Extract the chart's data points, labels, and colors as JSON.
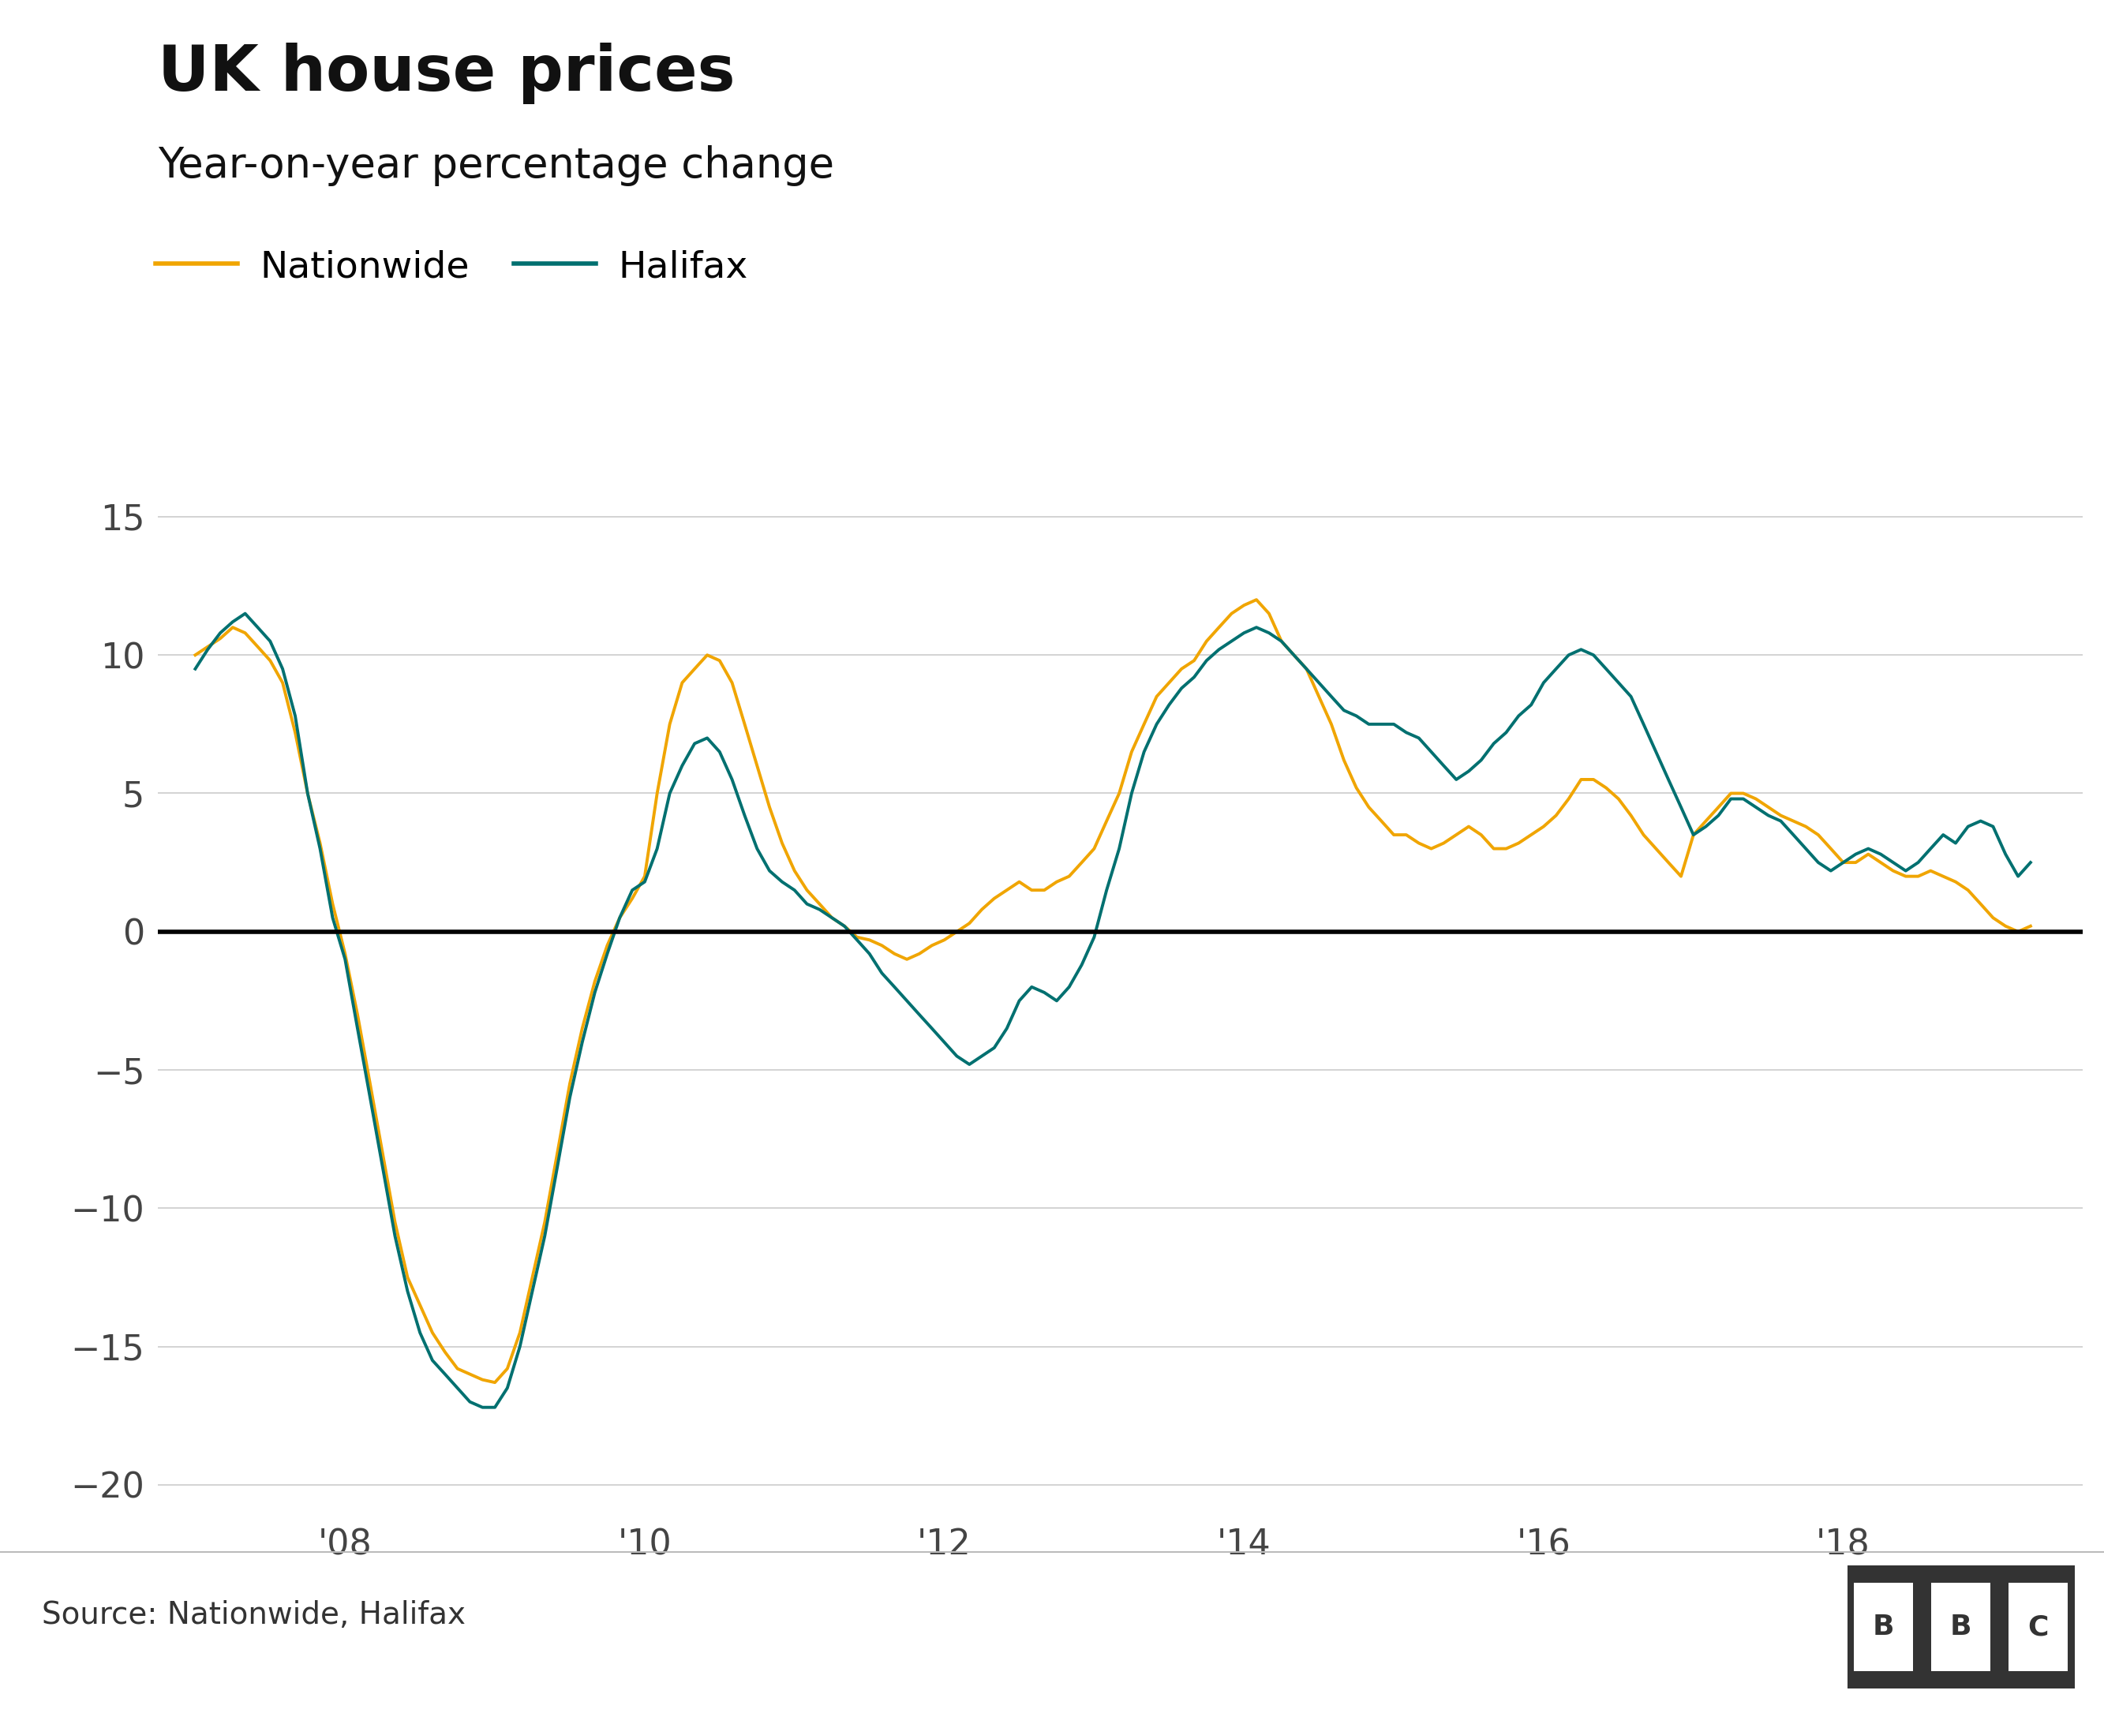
{
  "title": "UK house prices",
  "subtitle": "Year-on-year percentage change",
  "nationwide_color": "#f0a500",
  "halifax_color": "#007070",
  "zero_line_color": "#000000",
  "background_color": "#ffffff",
  "grid_color": "#cccccc",
  "source_text": "Source: Nationwide, Halifax",
  "legend_nationwide": "Nationwide",
  "legend_halifax": "Halifax",
  "title_fontsize": 58,
  "subtitle_fontsize": 38,
  "legend_fontsize": 34,
  "tick_fontsize": 32,
  "source_fontsize": 28,
  "ylim": [
    -21,
    17
  ],
  "yticks": [
    -20,
    -15,
    -10,
    -5,
    0,
    5,
    10,
    15
  ],
  "x_tick_labels": [
    "'08",
    "'10",
    "'12",
    "'14",
    "'16",
    "'18"
  ],
  "x_tick_positions": [
    2008,
    2010,
    2012,
    2014,
    2016,
    2018
  ],
  "xlim_left": 2006.75,
  "xlim_right": 2019.6,
  "nationwide_x": [
    2007.0,
    2007.083,
    2007.167,
    2007.25,
    2007.333,
    2007.417,
    2007.5,
    2007.583,
    2007.667,
    2007.75,
    2007.833,
    2007.917,
    2008.0,
    2008.083,
    2008.167,
    2008.25,
    2008.333,
    2008.417,
    2008.5,
    2008.583,
    2008.667,
    2008.75,
    2008.833,
    2008.917,
    2009.0,
    2009.083,
    2009.167,
    2009.25,
    2009.333,
    2009.417,
    2009.5,
    2009.583,
    2009.667,
    2009.75,
    2009.833,
    2009.917,
    2010.0,
    2010.083,
    2010.167,
    2010.25,
    2010.333,
    2010.417,
    2010.5,
    2010.583,
    2010.667,
    2010.75,
    2010.833,
    2010.917,
    2011.0,
    2011.083,
    2011.167,
    2011.25,
    2011.333,
    2011.417,
    2011.5,
    2011.583,
    2011.667,
    2011.75,
    2011.833,
    2011.917,
    2012.0,
    2012.083,
    2012.167,
    2012.25,
    2012.333,
    2012.417,
    2012.5,
    2012.583,
    2012.667,
    2012.75,
    2012.833,
    2012.917,
    2013.0,
    2013.083,
    2013.167,
    2013.25,
    2013.333,
    2013.417,
    2013.5,
    2013.583,
    2013.667,
    2013.75,
    2013.833,
    2013.917,
    2014.0,
    2014.083,
    2014.167,
    2014.25,
    2014.333,
    2014.417,
    2014.5,
    2014.583,
    2014.667,
    2014.75,
    2014.833,
    2014.917,
    2015.0,
    2015.083,
    2015.167,
    2015.25,
    2015.333,
    2015.417,
    2015.5,
    2015.583,
    2015.667,
    2015.75,
    2015.833,
    2015.917,
    2016.0,
    2016.083,
    2016.167,
    2016.25,
    2016.333,
    2016.417,
    2016.5,
    2016.583,
    2016.667,
    2016.75,
    2016.833,
    2016.917,
    2017.0,
    2017.083,
    2017.167,
    2017.25,
    2017.333,
    2017.417,
    2017.5,
    2017.583,
    2017.667,
    2017.75,
    2017.833,
    2017.917,
    2018.0,
    2018.083,
    2018.167,
    2018.25,
    2018.333,
    2018.417,
    2018.5,
    2018.583,
    2018.667,
    2018.75,
    2018.833,
    2018.917,
    2019.0,
    2019.083,
    2019.167,
    2019.25
  ],
  "nationwide_y": [
    10.0,
    10.3,
    10.6,
    11.0,
    10.8,
    10.3,
    9.8,
    9.0,
    7.2,
    5.0,
    3.2,
    1.0,
    -0.8,
    -3.0,
    -5.5,
    -8.0,
    -10.5,
    -12.5,
    -13.5,
    -14.5,
    -15.2,
    -15.8,
    -16.0,
    -16.2,
    -16.3,
    -15.8,
    -14.5,
    -12.5,
    -10.5,
    -8.0,
    -5.5,
    -3.5,
    -1.8,
    -0.5,
    0.5,
    1.2,
    2.0,
    5.0,
    7.5,
    9.0,
    9.5,
    10.0,
    9.8,
    9.0,
    7.5,
    6.0,
    4.5,
    3.2,
    2.2,
    1.5,
    1.0,
    0.5,
    0.2,
    -0.2,
    -0.3,
    -0.5,
    -0.8,
    -1.0,
    -0.8,
    -0.5,
    -0.3,
    0.0,
    0.3,
    0.8,
    1.2,
    1.5,
    1.8,
    1.5,
    1.5,
    1.8,
    2.0,
    2.5,
    3.0,
    4.0,
    5.0,
    6.5,
    7.5,
    8.5,
    9.0,
    9.5,
    9.8,
    10.5,
    11.0,
    11.5,
    11.8,
    12.0,
    11.5,
    10.5,
    10.0,
    9.5,
    8.5,
    7.5,
    6.2,
    5.2,
    4.5,
    4.0,
    3.5,
    3.5,
    3.2,
    3.0,
    3.2,
    3.5,
    3.8,
    3.5,
    3.0,
    3.0,
    3.2,
    3.5,
    3.8,
    4.2,
    4.8,
    5.5,
    5.5,
    5.2,
    4.8,
    4.2,
    3.5,
    3.0,
    2.5,
    2.0,
    3.5,
    4.0,
    4.5,
    5.0,
    5.0,
    4.8,
    4.5,
    4.2,
    4.0,
    3.8,
    3.5,
    3.0,
    2.5,
    2.5,
    2.8,
    2.5,
    2.2,
    2.0,
    2.0,
    2.2,
    2.0,
    1.8,
    1.5,
    1.0,
    0.5,
    0.2,
    0.0,
    0.2
  ],
  "halifax_x": [
    2007.0,
    2007.083,
    2007.167,
    2007.25,
    2007.333,
    2007.417,
    2007.5,
    2007.583,
    2007.667,
    2007.75,
    2007.833,
    2007.917,
    2008.0,
    2008.083,
    2008.167,
    2008.25,
    2008.333,
    2008.417,
    2008.5,
    2008.583,
    2008.667,
    2008.75,
    2008.833,
    2008.917,
    2009.0,
    2009.083,
    2009.167,
    2009.25,
    2009.333,
    2009.417,
    2009.5,
    2009.583,
    2009.667,
    2009.75,
    2009.833,
    2009.917,
    2010.0,
    2010.083,
    2010.167,
    2010.25,
    2010.333,
    2010.417,
    2010.5,
    2010.583,
    2010.667,
    2010.75,
    2010.833,
    2010.917,
    2011.0,
    2011.083,
    2011.167,
    2011.25,
    2011.333,
    2011.417,
    2011.5,
    2011.583,
    2011.667,
    2011.75,
    2011.833,
    2011.917,
    2012.0,
    2012.083,
    2012.167,
    2012.25,
    2012.333,
    2012.417,
    2012.5,
    2012.583,
    2012.667,
    2012.75,
    2012.833,
    2012.917,
    2013.0,
    2013.083,
    2013.167,
    2013.25,
    2013.333,
    2013.417,
    2013.5,
    2013.583,
    2013.667,
    2013.75,
    2013.833,
    2013.917,
    2014.0,
    2014.083,
    2014.167,
    2014.25,
    2014.333,
    2014.417,
    2014.5,
    2014.583,
    2014.667,
    2014.75,
    2014.833,
    2014.917,
    2015.0,
    2015.083,
    2015.167,
    2015.25,
    2015.333,
    2015.417,
    2015.5,
    2015.583,
    2015.667,
    2015.75,
    2015.833,
    2015.917,
    2016.0,
    2016.083,
    2016.167,
    2016.25,
    2016.333,
    2016.417,
    2016.5,
    2016.583,
    2016.667,
    2016.75,
    2016.833,
    2016.917,
    2017.0,
    2017.083,
    2017.167,
    2017.25,
    2017.333,
    2017.417,
    2017.5,
    2017.583,
    2017.667,
    2017.75,
    2017.833,
    2017.917,
    2018.0,
    2018.083,
    2018.167,
    2018.25,
    2018.333,
    2018.417,
    2018.5,
    2018.583,
    2018.667,
    2018.75,
    2018.833,
    2018.917,
    2019.0,
    2019.083,
    2019.167,
    2019.25
  ],
  "halifax_y": [
    9.5,
    10.2,
    10.8,
    11.2,
    11.5,
    11.0,
    10.5,
    9.5,
    7.8,
    5.0,
    3.0,
    0.5,
    -1.0,
    -3.5,
    -6.0,
    -8.5,
    -11.0,
    -13.0,
    -14.5,
    -15.5,
    -16.0,
    -16.5,
    -17.0,
    -17.2,
    -17.2,
    -16.5,
    -15.0,
    -13.0,
    -11.0,
    -8.5,
    -6.0,
    -4.0,
    -2.2,
    -0.8,
    0.5,
    1.5,
    1.8,
    3.0,
    5.0,
    6.0,
    6.8,
    7.0,
    6.5,
    5.5,
    4.2,
    3.0,
    2.2,
    1.8,
    1.5,
    1.0,
    0.8,
    0.5,
    0.2,
    -0.3,
    -0.8,
    -1.5,
    -2.0,
    -2.5,
    -3.0,
    -3.5,
    -4.0,
    -4.5,
    -4.8,
    -4.5,
    -4.2,
    -3.5,
    -2.5,
    -2.0,
    -2.2,
    -2.5,
    -2.0,
    -1.2,
    -0.2,
    1.5,
    3.0,
    5.0,
    6.5,
    7.5,
    8.2,
    8.8,
    9.2,
    9.8,
    10.2,
    10.5,
    10.8,
    11.0,
    10.8,
    10.5,
    10.0,
    9.5,
    9.0,
    8.5,
    8.0,
    7.8,
    7.5,
    7.5,
    7.5,
    7.2,
    7.0,
    6.5,
    6.0,
    5.5,
    5.8,
    6.2,
    6.8,
    7.2,
    7.8,
    8.2,
    9.0,
    9.5,
    10.0,
    10.2,
    10.0,
    9.5,
    9.0,
    8.5,
    7.5,
    6.5,
    5.5,
    4.5,
    3.5,
    3.8,
    4.2,
    4.8,
    4.8,
    4.5,
    4.2,
    4.0,
    3.5,
    3.0,
    2.5,
    2.2,
    2.5,
    2.8,
    3.0,
    2.8,
    2.5,
    2.2,
    2.5,
    3.0,
    3.5,
    3.2,
    3.8,
    4.0,
    3.8,
    2.8,
    2.0,
    2.5
  ]
}
